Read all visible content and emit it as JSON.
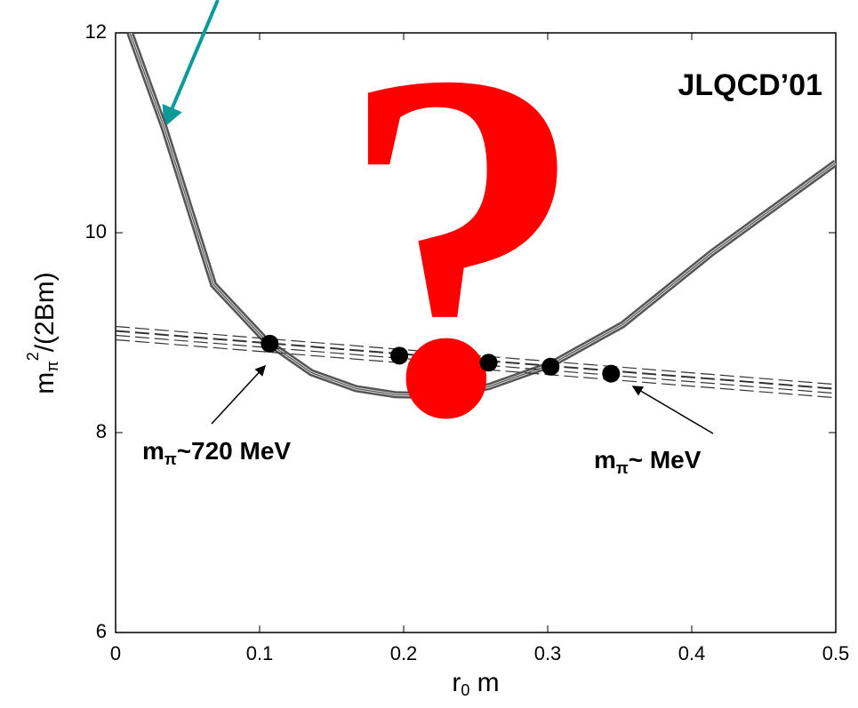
{
  "chart_data": {
    "type": "scatter",
    "title": "JLQCD’01",
    "xlabel_parts": [
      "r",
      "0",
      " m"
    ],
    "ylabel_parts": [
      "m",
      "π",
      "2",
      "/(2Bm)"
    ],
    "x": [
      0.107,
      0.197,
      0.259,
      0.302,
      0.344
    ],
    "values": [
      8.89,
      8.77,
      8.7,
      8.66,
      8.59
    ],
    "color": "#000000",
    "curves": [
      {
        "type": "line",
        "dashed": false,
        "x": [
          0.01,
          0.034,
          0.068,
          0.105,
          0.136,
          0.167,
          0.194,
          0.222,
          0.259,
          0.302,
          0.352,
          0.414,
          0.5
        ],
        "values": [
          12.0,
          11.04,
          9.48,
          8.91,
          8.6,
          8.44,
          8.38,
          8.37,
          8.46,
          8.68,
          9.08,
          9.8,
          10.7
        ]
      },
      {
        "type": "line",
        "dashed": true,
        "x": [
          0,
          0.5
        ],
        "values": [
          9.0,
          8.42
        ]
      }
    ],
    "annotations": [
      {
        "parts": [
          "m",
          "π",
          "~720 MeV"
        ]
      },
      {
        "parts": [
          "m",
          "π",
          "~ MeV"
        ]
      },
      {
        "text": "?"
      }
    ],
    "xlim": [
      0,
      0.5
    ],
    "xticks": [
      0,
      0.1,
      0.2,
      0.3,
      0.4,
      0.5
    ],
    "ylim": [
      6,
      12
    ],
    "yticks": [
      6,
      8,
      10,
      12
    ]
  }
}
